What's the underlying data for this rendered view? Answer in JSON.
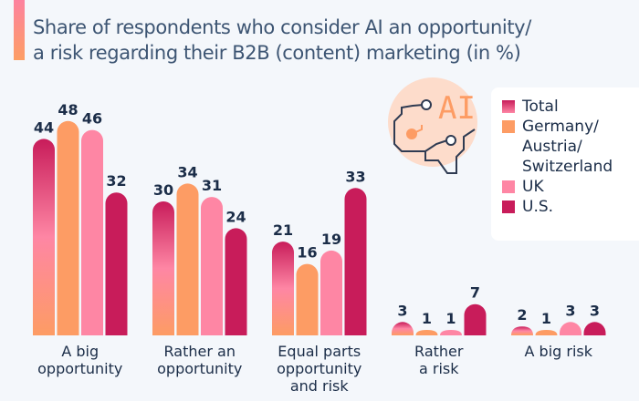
{
  "title_lines": [
    "Share of respondents who consider AI an opportunity/",
    "a risk regarding their B2B (content) marketing (in %)"
  ],
  "icon": {
    "text": "AI",
    "name": "ai-circuit-icon"
  },
  "chart_data": {
    "type": "bar",
    "title": "Share of respondents who consider AI an opportunity/ a risk regarding their B2B (content) marketing (in %)",
    "xlabel": "",
    "ylabel": "",
    "ylim": [
      0,
      50
    ],
    "grid": false,
    "legend_position": "top-right",
    "categories": [
      "A big opportunity",
      "Rather an opportunity",
      "Equal parts opportunity and risk",
      "Rather a risk",
      "A big risk"
    ],
    "category_lines": [
      [
        "A big",
        "opportunity"
      ],
      [
        "Rather an",
        "opportunity"
      ],
      [
        "Equal parts",
        "opportunity",
        "and risk"
      ],
      [
        "Rather",
        "a risk"
      ],
      [
        "A big risk"
      ]
    ],
    "series": [
      {
        "name": "Total",
        "legend_lines": [
          "Total"
        ],
        "color": "#c81c5a",
        "values": [
          44,
          30,
          21,
          3,
          2
        ]
      },
      {
        "name": "Germany/Austria/Switzerland",
        "legend_lines": [
          "Germany/",
          "Austria/",
          "Switzerland"
        ],
        "color": "#fd9c64",
        "values": [
          48,
          34,
          16,
          1,
          1
        ]
      },
      {
        "name": "UK",
        "legend_lines": [
          "UK"
        ],
        "color": "#fe86a4",
        "values": [
          46,
          31,
          19,
          1,
          3
        ]
      },
      {
        "name": "U.S.",
        "legend_lines": [
          "U.S."
        ],
        "color": "#c81c5a",
        "values": [
          32,
          24,
          33,
          7,
          3
        ]
      }
    ]
  }
}
